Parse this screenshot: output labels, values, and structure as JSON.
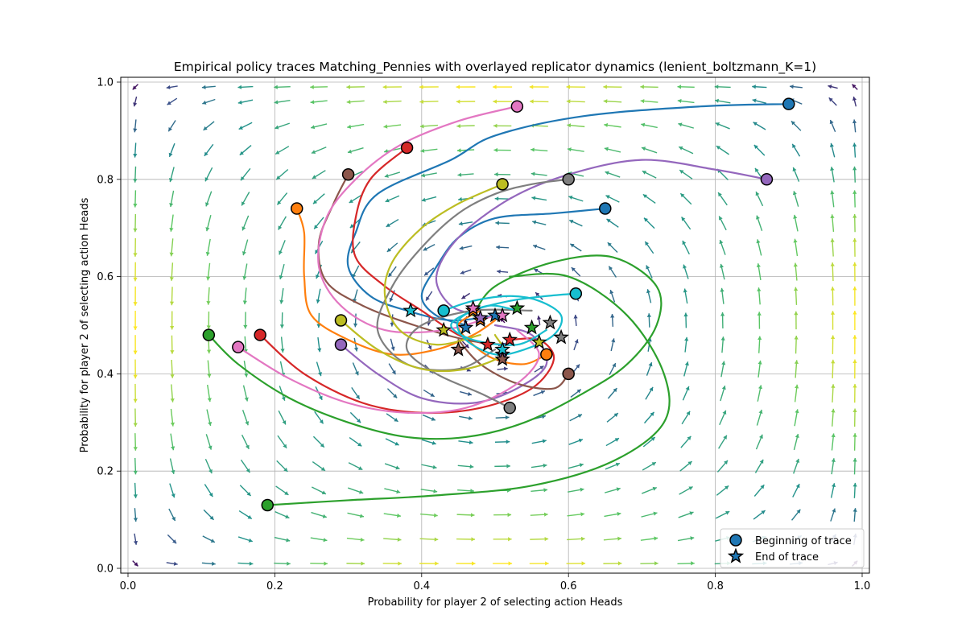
{
  "chart_data": {
    "type": "line",
    "title": "Empirical policy traces Matching_Pennies with overlayed replicator dynamics (lenient_boltzmann_K=1)",
    "xlabel": "Probability for player 2 of selecting action Heads",
    "ylabel": "Probability for player 2 of selecting action Heads",
    "xlim": [
      0.0,
      1.0
    ],
    "ylim": [
      0.0,
      1.0
    ],
    "xticks": [
      "0.0",
      "0.2",
      "0.4",
      "0.6",
      "0.8",
      "1.0"
    ],
    "yticks": [
      "0.0",
      "0.2",
      "0.4",
      "0.6",
      "0.8",
      "1.0"
    ],
    "grid": true,
    "legend": {
      "placement": "lower-right",
      "entries": [
        {
          "label": "Beginning of trace",
          "marker": "circle"
        },
        {
          "label": "End of trace",
          "marker": "star"
        }
      ]
    },
    "quiver": {
      "grid": [
        0.01,
        0.06,
        0.11,
        0.16,
        0.21,
        0.26,
        0.31,
        0.36,
        0.41,
        0.46,
        0.51,
        0.56,
        0.61,
        0.66,
        0.71,
        0.76,
        0.81,
        0.86,
        0.91,
        0.96,
        0.99
      ],
      "dynamics": "lenient_boltzmann_K=1",
      "colormap": [
        "#440154",
        "#3b528b",
        "#21918c",
        "#5ec962",
        "#fde725"
      ]
    },
    "series": [
      {
        "color": "#1f77b4",
        "x": [
          0.9,
          0.78,
          0.62,
          0.5,
          0.44,
          0.34,
          0.31,
          0.3,
          0.33,
          0.38,
          0.44,
          0.5
        ],
        "y": [
          0.955,
          0.95,
          0.93,
          0.89,
          0.84,
          0.77,
          0.69,
          0.62,
          0.56,
          0.53,
          0.51,
          0.52
        ],
        "end": [
          0.5,
          0.52
        ]
      },
      {
        "color": "#1f77b4",
        "x": [
          0.65,
          0.58,
          0.5,
          0.45,
          0.42,
          0.4,
          0.42,
          0.46
        ],
        "y": [
          0.74,
          0.73,
          0.72,
          0.68,
          0.62,
          0.56,
          0.52,
          0.5
        ],
        "end": [
          0.46,
          0.495
        ]
      },
      {
        "color": "#ff7f0e",
        "x": [
          0.23,
          0.24,
          0.24,
          0.25,
          0.3,
          0.36,
          0.42,
          0.47,
          0.5
        ],
        "y": [
          0.74,
          0.69,
          0.6,
          0.52,
          0.47,
          0.44,
          0.45,
          0.48,
          0.51
        ],
        "end": [
          0.48,
          0.51
        ]
      },
      {
        "color": "#ff7f0e",
        "x": [
          0.57,
          0.54,
          0.5,
          0.47,
          0.45,
          0.48
        ],
        "y": [
          0.44,
          0.42,
          0.43,
          0.46,
          0.5,
          0.53
        ],
        "end": [
          0.47,
          0.53
        ]
      },
      {
        "color": "#2ca02c",
        "x": [
          0.11,
          0.15,
          0.22,
          0.3,
          0.38,
          0.46,
          0.54,
          0.62,
          0.68,
          0.72,
          0.72,
          0.66,
          0.58,
          0.5,
          0.47
        ],
        "y": [
          0.48,
          0.42,
          0.35,
          0.3,
          0.27,
          0.27,
          0.3,
          0.36,
          0.42,
          0.5,
          0.58,
          0.64,
          0.63,
          0.58,
          0.52
        ],
        "end": [
          0.53,
          0.535
        ]
      },
      {
        "color": "#2ca02c",
        "x": [
          0.19,
          0.3,
          0.42,
          0.55,
          0.66,
          0.73,
          0.73,
          0.68,
          0.6,
          0.52
        ],
        "y": [
          0.13,
          0.14,
          0.15,
          0.17,
          0.22,
          0.3,
          0.4,
          0.52,
          0.6,
          0.6
        ],
        "end": [
          0.55,
          0.495
        ]
      },
      {
        "color": "#d62728",
        "x": [
          0.38,
          0.33,
          0.31,
          0.31,
          0.35,
          0.4,
          0.45,
          0.49
        ],
        "y": [
          0.865,
          0.8,
          0.72,
          0.64,
          0.58,
          0.53,
          0.48,
          0.46
        ],
        "end": [
          0.49,
          0.46
        ]
      },
      {
        "color": "#d62728",
        "x": [
          0.18,
          0.24,
          0.32,
          0.4,
          0.48,
          0.55,
          0.58,
          0.56,
          0.52
        ],
        "y": [
          0.48,
          0.4,
          0.34,
          0.32,
          0.33,
          0.37,
          0.43,
          0.47,
          0.47
        ],
        "end": [
          0.52,
          0.47
        ]
      },
      {
        "color": "#9467bd",
        "x": [
          0.87,
          0.8,
          0.7,
          0.6,
          0.52,
          0.45,
          0.42,
          0.44,
          0.48
        ],
        "y": [
          0.8,
          0.82,
          0.84,
          0.81,
          0.76,
          0.68,
          0.6,
          0.54,
          0.52
        ],
        "end": [
          0.48,
          0.515
        ]
      },
      {
        "color": "#9467bd",
        "x": [
          0.29,
          0.34,
          0.4,
          0.47,
          0.53,
          0.57,
          0.55,
          0.5
        ],
        "y": [
          0.46,
          0.4,
          0.35,
          0.34,
          0.37,
          0.42,
          0.48,
          0.5
        ],
        "end": [
          0.51,
          0.44
        ]
      },
      {
        "color": "#8c564b",
        "x": [
          0.3,
          0.28,
          0.26,
          0.27,
          0.32,
          0.39,
          0.46,
          0.51
        ],
        "y": [
          0.81,
          0.75,
          0.67,
          0.59,
          0.54,
          0.5,
          0.47,
          0.46
        ],
        "end": [
          0.51,
          0.43
        ]
      },
      {
        "color": "#8c564b",
        "x": [
          0.6,
          0.58,
          0.53,
          0.48,
          0.45
        ],
        "y": [
          0.4,
          0.37,
          0.38,
          0.42,
          0.47
        ],
        "end": [
          0.45,
          0.45
        ]
      },
      {
        "color": "#e377c2",
        "x": [
          0.53,
          0.45,
          0.37,
          0.31,
          0.27,
          0.26,
          0.29,
          0.35,
          0.43,
          0.5
        ],
        "y": [
          0.95,
          0.92,
          0.87,
          0.8,
          0.72,
          0.62,
          0.54,
          0.49,
          0.49,
          0.52
        ],
        "end": [
          0.47,
          0.535
        ]
      },
      {
        "color": "#e377c2",
        "x": [
          0.15,
          0.22,
          0.3,
          0.38,
          0.46,
          0.53,
          0.56,
          0.53
        ],
        "y": [
          0.455,
          0.39,
          0.34,
          0.32,
          0.33,
          0.38,
          0.44,
          0.49
        ],
        "end": [
          0.51,
          0.52
        ]
      },
      {
        "color": "#7f7f7f",
        "x": [
          0.6,
          0.55,
          0.5,
          0.45,
          0.4,
          0.36,
          0.34,
          0.38,
          0.45,
          0.5
        ],
        "y": [
          0.8,
          0.79,
          0.77,
          0.73,
          0.66,
          0.58,
          0.49,
          0.42,
          0.41,
          0.45
        ],
        "end": [
          0.59,
          0.475
        ]
      },
      {
        "color": "#7f7f7f",
        "x": [
          0.52,
          0.48,
          0.42,
          0.38,
          0.4,
          0.47,
          0.55
        ],
        "y": [
          0.33,
          0.36,
          0.4,
          0.45,
          0.5,
          0.53,
          0.53
        ],
        "end": [
          0.575,
          0.505
        ]
      },
      {
        "color": "#bcbd22",
        "x": [
          0.51,
          0.45,
          0.4,
          0.36,
          0.35,
          0.37,
          0.42,
          0.48
        ],
        "y": [
          0.79,
          0.75,
          0.7,
          0.63,
          0.56,
          0.49,
          0.46,
          0.48
        ],
        "end": [
          0.43,
          0.49
        ]
      },
      {
        "color": "#bcbd22",
        "x": [
          0.29,
          0.34,
          0.4,
          0.46,
          0.51,
          0.5
        ],
        "y": [
          0.51,
          0.45,
          0.41,
          0.41,
          0.44,
          0.48
        ],
        "end": [
          0.56,
          0.465
        ]
      },
      {
        "color": "#17becf",
        "x": [
          0.43,
          0.47,
          0.52,
          0.56,
          0.59,
          0.58,
          0.54,
          0.5,
          0.46,
          0.45,
          0.49,
          0.53
        ],
        "y": [
          0.53,
          0.55,
          0.56,
          0.55,
          0.52,
          0.48,
          0.45,
          0.44,
          0.47,
          0.51,
          0.54,
          0.53
        ],
        "end": [
          0.385,
          0.53
        ]
      },
      {
        "color": "#17becf",
        "x": [
          0.61,
          0.57,
          0.52,
          0.47,
          0.44,
          0.47,
          0.53,
          0.57
        ],
        "y": [
          0.565,
          0.56,
          0.55,
          0.53,
          0.5,
          0.47,
          0.46,
          0.49
        ],
        "end": [
          0.51,
          0.45
        ]
      }
    ]
  }
}
